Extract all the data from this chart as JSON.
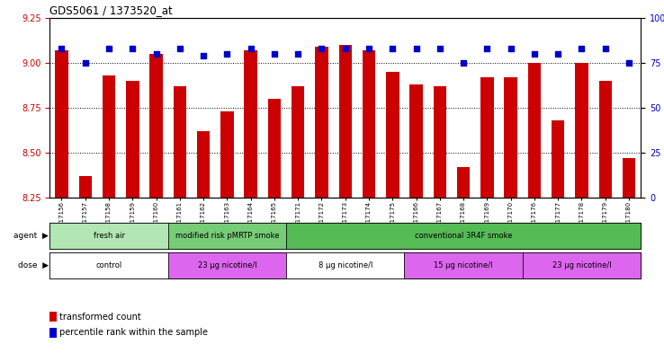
{
  "title": "GDS5061 / 1373520_at",
  "samples": [
    "GSM1217156",
    "GSM1217157",
    "GSM1217158",
    "GSM1217159",
    "GSM1217160",
    "GSM1217161",
    "GSM1217162",
    "GSM1217163",
    "GSM1217164",
    "GSM1217165",
    "GSM1217171",
    "GSM1217172",
    "GSM1217173",
    "GSM1217174",
    "GSM1217175",
    "GSM1217166",
    "GSM1217167",
    "GSM1217168",
    "GSM1217169",
    "GSM1217170",
    "GSM1217176",
    "GSM1217177",
    "GSM1217178",
    "GSM1217179",
    "GSM1217180"
  ],
  "bar_values": [
    9.07,
    8.37,
    8.93,
    8.9,
    9.05,
    8.87,
    8.62,
    8.73,
    9.07,
    8.8,
    8.87,
    9.09,
    9.1,
    9.07,
    8.95,
    8.88,
    8.87,
    8.42,
    8.92,
    8.92,
    9.0,
    8.68,
    9.0,
    8.9,
    8.47
  ],
  "percentile_values": [
    83,
    75,
    83,
    83,
    80,
    83,
    79,
    80,
    83,
    80,
    80,
    83,
    83,
    83,
    83,
    83,
    83,
    75,
    83,
    83,
    80,
    80,
    83,
    83,
    75
  ],
  "ylim_left": [
    8.25,
    9.25
  ],
  "ylim_right": [
    0,
    100
  ],
  "yticks_left": [
    8.25,
    8.5,
    8.75,
    9.0,
    9.25
  ],
  "yticks_right": [
    0,
    25,
    50,
    75,
    100
  ],
  "ytick_labels_right": [
    "0",
    "25",
    "50",
    "75",
    "100%"
  ],
  "bar_color": "#cc0000",
  "dot_color": "#0000cc",
  "agent_groups": [
    {
      "label": "fresh air",
      "start": 0,
      "end": 4,
      "color": "#b2e6b2"
    },
    {
      "label": "modified risk pMRTP smoke",
      "start": 5,
      "end": 9,
      "color": "#77cc77"
    },
    {
      "label": "conventional 3R4F smoke",
      "start": 10,
      "end": 24,
      "color": "#55bb55"
    }
  ],
  "dose_groups": [
    {
      "label": "control",
      "start": 0,
      "end": 4,
      "color": "#ffffff"
    },
    {
      "label": "23 μg nicotine/l",
      "start": 5,
      "end": 9,
      "color": "#dd66ee"
    },
    {
      "label": "8 μg nicotine/l",
      "start": 10,
      "end": 14,
      "color": "#ffffff"
    },
    {
      "label": "15 μg nicotine/l",
      "start": 15,
      "end": 19,
      "color": "#dd66ee"
    },
    {
      "label": "23 μg nicotine/l",
      "start": 20,
      "end": 24,
      "color": "#dd66ee"
    }
  ],
  "legend_items": [
    {
      "label": "transformed count",
      "color": "#cc0000"
    },
    {
      "label": "percentile rank within the sample",
      "color": "#0000cc"
    }
  ]
}
